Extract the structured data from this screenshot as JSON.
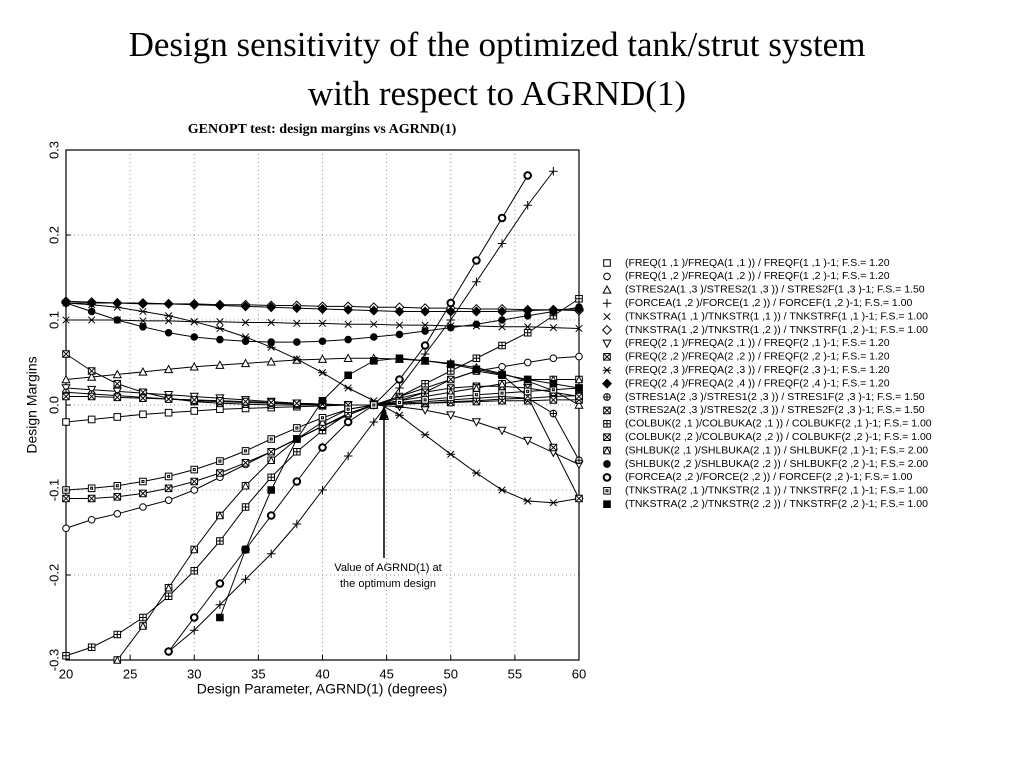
{
  "slide_title": [
    "Design sensitivity of the optimized tank/strut system",
    "with respect to AGRND(1)"
  ],
  "chart_data": {
    "type": "line",
    "title": "GENOPT test: design margins vs AGRND(1)",
    "x_label": "Design Parameter, AGRND(1) (degrees)",
    "y_label": "Design Margins",
    "annotation": [
      "Value of AGRND(1) at",
      "the optimum design"
    ],
    "color": "#000000",
    "grid": true,
    "xlim": [
      20,
      60
    ],
    "xticks": [
      20,
      25,
      30,
      35,
      40,
      45,
      50,
      55,
      60
    ],
    "ylim": [
      -0.3,
      0.3
    ],
    "yticks": [
      -0.3,
      -0.2,
      -0.1,
      {
        "value": 0,
        "label": "0.0"
      },
      0.1,
      0.2,
      0.3
    ],
    "x": [
      20,
      22,
      24,
      26,
      28,
      30,
      32,
      34,
      36,
      38,
      40,
      42,
      44,
      46,
      48,
      50,
      52,
      54,
      56,
      58,
      60
    ],
    "series": [
      {
        "name": "(FREQ(1 ,1 )/FREQA(1 ,1 )) / FREQF(1 ,1 )-1; F.S.= 1.20",
        "marker": "square",
        "values": [
          -0.02,
          -0.017,
          -0.014,
          -0.011,
          -0.009,
          -0.007,
          -0.005,
          -0.004,
          -0.003,
          -0.002,
          -0.001,
          0,
          0,
          0.001,
          0.002,
          0.004,
          0.005,
          0.007,
          0.008,
          0.01,
          0.011
        ]
      },
      {
        "name": "(FREQ(1 ,2 )/FREQA(1 ,2 )) / FREQF(1 ,2 )-1; F.S.= 1.20",
        "marker": "circle",
        "values": [
          -0.145,
          -0.135,
          -0.128,
          -0.12,
          -0.112,
          -0.1,
          -0.085,
          -0.07,
          -0.055,
          -0.04,
          -0.025,
          -0.012,
          0,
          0.01,
          0.02,
          0.03,
          0.04,
          0.045,
          0.05,
          0.055,
          0.057
        ]
      },
      {
        "name": "(STRES2A(1 ,3 )/STRES2(1 ,3 )) / STRES2F(1 ,3 )-1; F.S.= 1.50",
        "marker": "triangle",
        "values": [
          0.03,
          0.033,
          0.036,
          0.039,
          0.042,
          0.045,
          0.047,
          0.049,
          0.051,
          0.053,
          0.054,
          0.055,
          0.055,
          0.054,
          0.052,
          0.049,
          0.044,
          0.037,
          0.028,
          0.017,
          0
        ]
      },
      {
        "name": "(FORCEA(1 ,2 )/FORCE(1 ,2 )) / FORCEF(1 ,2 )-1; F.S.= 1.00",
        "marker": "plus",
        "values": [
          null,
          null,
          null,
          null,
          -0.29,
          -0.265,
          -0.235,
          -0.205,
          -0.175,
          -0.14,
          -0.1,
          -0.06,
          -0.02,
          0.02,
          0.06,
          0.1,
          0.145,
          0.19,
          0.235,
          0.275,
          null
        ]
      },
      {
        "name": "(TNKSTRA(1 ,1 )/TNKSTR(1 ,1 )) / TNKSTRF(1 ,1 )-1; F.S.= 1.00",
        "marker": "x",
        "values": [
          0.1,
          0.1,
          0.1,
          0.099,
          0.099,
          0.098,
          0.098,
          0.097,
          0.097,
          0.096,
          0.096,
          0.095,
          0.095,
          0.094,
          0.094,
          0.093,
          0.093,
          0.092,
          0.092,
          0.091,
          0.09
        ]
      },
      {
        "name": "(TNKSTRA(1 ,2 )/TNKSTR(1 ,2 )) / TNKSTRF(1 ,2 )-1; F.S.= 1.00",
        "marker": "diamond",
        "values": [
          0.12,
          0.12,
          0.12,
          0.119,
          0.119,
          0.119,
          0.118,
          0.118,
          0.117,
          0.117,
          0.116,
          0.116,
          0.115,
          0.115,
          0.114,
          0.114,
          0.113,
          0.113,
          0.112,
          0.112,
          0.111
        ]
      },
      {
        "name": "(FREQ(2 ,1 )/FREQA(2 ,1 )) / FREQF(2 ,1 )-1; F.S.= 1.20",
        "marker": "triangle-down",
        "values": [
          0.02,
          0.018,
          0.016,
          0.014,
          0.012,
          0.01,
          0.008,
          0.006,
          0.004,
          0.002,
          0.001,
          0,
          0,
          -0.002,
          -0.006,
          -0.012,
          -0.02,
          -0.03,
          -0.042,
          -0.056,
          -0.07
        ]
      },
      {
        "name": "(FREQ(2 ,2 )/FREQA(2 ,2 )) / FREQF(2 ,2 )-1; F.S.= 1.20",
        "marker": "square-x",
        "values": [
          0.06,
          0.04,
          0.025,
          0.015,
          0.008,
          0.004,
          0.002,
          0.001,
          0,
          0,
          0,
          0,
          0,
          0.001,
          0.002,
          0.003,
          0.004,
          0.005,
          0.005,
          0.006,
          0.006
        ]
      },
      {
        "name": "(FREQ(2 ,3 )/FREQA(2 ,3 )) / FREQF(2 ,3 )-1; F.S.= 1.20",
        "marker": "asterisk",
        "values": [
          0.12,
          0.118,
          0.115,
          0.11,
          0.105,
          0.098,
          0.09,
          0.08,
          0.068,
          0.054,
          0.038,
          0.02,
          0.005,
          -0.012,
          -0.035,
          -0.058,
          -0.08,
          -0.1,
          -0.113,
          -0.115,
          -0.11
        ]
      },
      {
        "name": "(FREQ(2 ,4 )/FREQA(2 ,4 )) / FREQF(2 ,4 )-1; F.S.= 1.20",
        "marker": "diamond-filled",
        "values": [
          0.122,
          0.121,
          0.12,
          0.12,
          0.119,
          0.118,
          0.117,
          0.116,
          0.115,
          0.114,
          0.113,
          0.112,
          0.111,
          0.11,
          0.11,
          0.11,
          0.11,
          0.11,
          0.111,
          0.112,
          0.113
        ]
      },
      {
        "name": "(STRES1A(2 ,3 )/STRES1(2 ,3 )) / STRES1F(2 ,3 )-1; F.S.= 1.50",
        "marker": "circle-plus",
        "values": [
          0.015,
          0.013,
          0.011,
          0.009,
          0.007,
          0.005,
          0.004,
          0.003,
          0.002,
          0.001,
          0,
          0,
          0,
          0.002,
          0.004,
          0.006,
          0.008,
          0.01,
          0.008,
          -0.01,
          -0.065
        ]
      },
      {
        "name": "(STRES2A(2 ,3 )/STRES2(2 ,3 )) / STRES2F(2 ,3 )-1; F.S.= 1.50",
        "marker": "square-hourglass",
        "values": [
          0.01,
          0.01,
          0.009,
          0.008,
          0.007,
          0.006,
          0.005,
          0.004,
          0.003,
          0.002,
          0.001,
          0,
          0,
          0.005,
          0.015,
          0.03,
          0.04,
          0.035,
          0.01,
          -0.05,
          -0.11
        ]
      },
      {
        "name": "(COLBUK(2 ,1 )/COLBUKA(2 ,1 )) / COLBUKF(2 ,1 )-1; F.S.= 1.00",
        "marker": "square-plus",
        "values": [
          -0.295,
          -0.285,
          -0.27,
          -0.25,
          -0.225,
          -0.195,
          -0.16,
          -0.12,
          -0.085,
          -0.055,
          -0.03,
          -0.01,
          0,
          0.01,
          0.025,
          0.04,
          0.055,
          0.07,
          0.085,
          0.105,
          0.125
        ]
      },
      {
        "name": "(COLBUK(2 ,2 )/COLBUKA(2 ,2 )) / COLBUKF(2 ,2 )-1; F.S.= 1.00",
        "marker": "square-x",
        "values": [
          -0.11,
          -0.11,
          -0.108,
          -0.104,
          -0.098,
          -0.09,
          -0.08,
          -0.068,
          -0.055,
          -0.04,
          -0.025,
          -0.01,
          0,
          0.008,
          0.015,
          0.02,
          0.022,
          0.022,
          0.02,
          0.015,
          0.01
        ]
      },
      {
        "name": "(SHLBUK(2 ,1 )/SHLBUKA(2 ,1 )) / SHLBUKF(2 ,1 )-1; F.S.= 2.00",
        "marker": "square-triangle",
        "values": [
          null,
          null,
          -0.3,
          -0.26,
          -0.215,
          -0.17,
          -0.13,
          -0.095,
          -0.065,
          -0.04,
          -0.02,
          -0.005,
          0,
          0.005,
          0.01,
          0.015,
          0.02,
          0.025,
          0.03,
          0.03,
          0.03
        ]
      },
      {
        "name": "(SHLBUK(2 ,2 )/SHLBUKA(2 ,2 )) / SHLBUKF(2 ,2 )-1; F.S.= 2.00",
        "marker": "circle-filled",
        "values": [
          0.12,
          0.11,
          0.1,
          0.092,
          0.085,
          0.08,
          0.077,
          0.075,
          0.074,
          0.074,
          0.075,
          0.077,
          0.08,
          0.083,
          0.087,
          0.091,
          0.095,
          0.1,
          0.105,
          0.11,
          0.115
        ]
      },
      {
        "name": "(FORCEA(2 ,2 )/FORCE(2 ,2 )) / FORCEF(2 ,2 )-1; F.S.= 1.00",
        "marker": "circle-bold",
        "values": [
          null,
          null,
          null,
          null,
          -0.29,
          -0.25,
          -0.21,
          -0.17,
          -0.13,
          -0.09,
          -0.05,
          -0.02,
          0,
          0.03,
          0.07,
          0.12,
          0.17,
          0.22,
          0.27,
          null,
          null
        ]
      },
      {
        "name": "(TNKSTRA(2 ,1 )/TNKSTR(2 ,1 )) / TNKSTRF(2 ,1 )-1; F.S.= 1.00",
        "marker": "square-dot",
        "values": [
          -0.1,
          -0.098,
          -0.095,
          -0.09,
          -0.084,
          -0.076,
          -0.066,
          -0.054,
          -0.04,
          -0.027,
          -0.015,
          -0.005,
          0,
          0.003,
          0.006,
          0.009,
          0.012,
          0.014,
          0.016,
          0.018,
          0.02
        ]
      },
      {
        "name": "(TNKSTRA(2 ,2 )/TNKSTR(2 ,2 )) / TNKSTRF(2 ,2 )-1; F.S.= 1.00",
        "marker": "square-filled",
        "values": [
          null,
          null,
          null,
          null,
          null,
          null,
          -0.25,
          -0.17,
          -0.1,
          -0.04,
          0.005,
          0.035,
          0.052,
          0.055,
          0.052,
          0.048,
          0.042,
          0.036,
          0.03,
          0.025,
          0.02
        ]
      }
    ]
  }
}
